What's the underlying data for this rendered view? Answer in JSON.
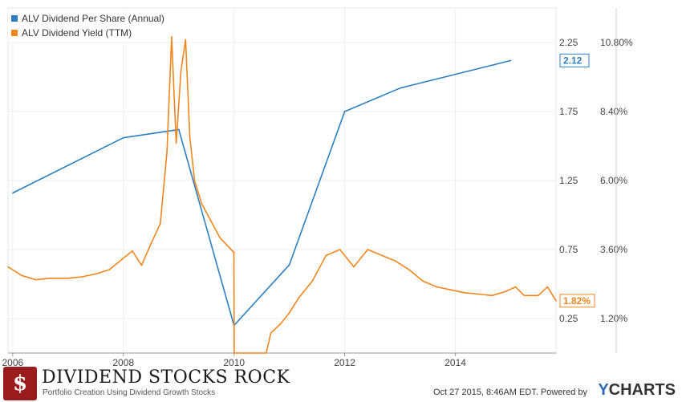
{
  "chart_data": {
    "type": "line",
    "series": [
      {
        "name": "ALV Dividend Per Share (Annual)",
        "color": "#2d7fc1",
        "axis": "left",
        "points": [
          [
            "2006-01-01",
            1.16
          ],
          [
            "2008-01-01",
            1.56
          ],
          [
            "2009-01-01",
            1.62
          ],
          [
            "2010-01-01",
            0.2
          ],
          [
            "2011-01-01",
            0.64
          ],
          [
            "2012-01-01",
            1.75
          ],
          [
            "2013-01-01",
            1.92
          ],
          [
            "2014-01-01",
            2.02
          ],
          [
            "2015-01-01",
            2.12
          ]
        ],
        "last_value_label": "2.12"
      },
      {
        "name": "ALV Dividend Yield (TTM)",
        "color": "#f0861d",
        "axis": "right",
        "points": [
          [
            "2005-12-01",
            3.0
          ],
          [
            "2006-03-01",
            2.7
          ],
          [
            "2006-06-01",
            2.55
          ],
          [
            "2006-09-01",
            2.6
          ],
          [
            "2007-01-01",
            2.6
          ],
          [
            "2007-04-01",
            2.65
          ],
          [
            "2007-07-01",
            2.75
          ],
          [
            "2007-10-01",
            2.9
          ],
          [
            "2008-01-01",
            3.3
          ],
          [
            "2008-03-01",
            3.55
          ],
          [
            "2008-05-01",
            3.05
          ],
          [
            "2008-07-01",
            3.8
          ],
          [
            "2008-09-01",
            4.5
          ],
          [
            "2008-10-15",
            7.0
          ],
          [
            "2008-11-15",
            11.0
          ],
          [
            "2008-12-15",
            7.3
          ],
          [
            "2009-01-15",
            9.8
          ],
          [
            "2009-02-15",
            10.9
          ],
          [
            "2009-03-15",
            7.5
          ],
          [
            "2009-04-15",
            6.0
          ],
          [
            "2009-06-01",
            5.2
          ],
          [
            "2009-08-01",
            4.6
          ],
          [
            "2009-10-01",
            4.0
          ],
          [
            "2009-12-31",
            3.5
          ],
          [
            "2010-01-02",
            0.0
          ],
          [
            "2010-08-01",
            0.0
          ],
          [
            "2010-09-01",
            0.7
          ],
          [
            "2010-11-01",
            1.0
          ],
          [
            "2011-01-01",
            1.4
          ],
          [
            "2011-03-01",
            1.9
          ],
          [
            "2011-06-01",
            2.5
          ],
          [
            "2011-09-01",
            3.4
          ],
          [
            "2011-12-01",
            3.6
          ],
          [
            "2012-03-01",
            3.0
          ],
          [
            "2012-06-01",
            3.6
          ],
          [
            "2012-09-01",
            3.4
          ],
          [
            "2012-12-01",
            3.2
          ],
          [
            "2013-03-01",
            2.9
          ],
          [
            "2013-06-01",
            2.5
          ],
          [
            "2013-09-01",
            2.3
          ],
          [
            "2013-12-01",
            2.2
          ],
          [
            "2014-03-01",
            2.1
          ],
          [
            "2014-06-01",
            2.05
          ],
          [
            "2014-09-01",
            2.0
          ],
          [
            "2014-12-01",
            2.15
          ],
          [
            "2015-02-01",
            2.3
          ],
          [
            "2015-04-01",
            2.0
          ],
          [
            "2015-07-01",
            2.0
          ],
          [
            "2015-09-01",
            2.3
          ],
          [
            "2015-10-27",
            1.82
          ]
        ],
        "last_value_label": "1.82%"
      }
    ],
    "x_ticks": [
      "2006",
      "2008",
      "2010",
      "2012",
      "2014"
    ],
    "y_left_ticks": [
      "2.25",
      "1.75",
      "1.25",
      "0.75",
      "0.25"
    ],
    "y_right_ticks": [
      "10.80%",
      "8.40%",
      "6.00%",
      "3.60%",
      "1.20%"
    ],
    "xlim": [
      "2005-12-01",
      "2015-10-27"
    ],
    "y_left_range": [
      0,
      2.5
    ],
    "y_right_range": [
      0,
      12
    ],
    "grid": true,
    "legend_position": "top-left"
  },
  "footer": {
    "brand_icon": "$",
    "brand_name": "DIVIDEND STOCKS ROCK",
    "brand_tagline": "Portfolio Creation Using Dividend Growth Stocks",
    "timestamp": "Oct 27 2015, 8:46AM EDT.  Powered by",
    "ycharts_y": "Y",
    "ycharts_rest": "CHARTS"
  }
}
